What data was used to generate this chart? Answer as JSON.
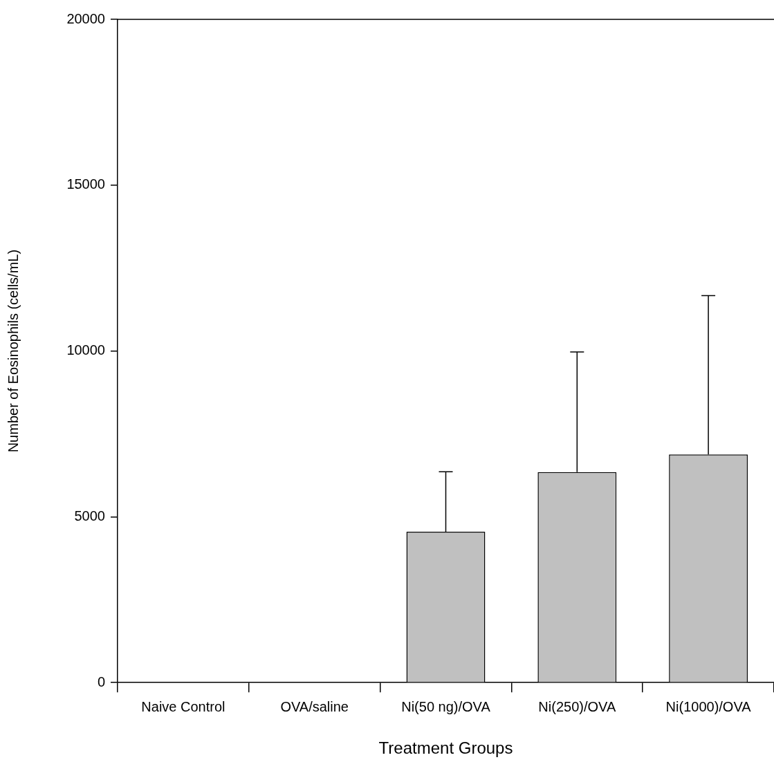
{
  "chart_data": {
    "type": "bar",
    "xlabel": "Treatment Groups",
    "ylabel": "Number of Eosinophils (cells/mL)",
    "categories": [
      "Naive Control",
      "OVA/saline",
      "Ni(50 ng)/OVA",
      "Ni(250)/OVA",
      "Ni(1000)/OVA"
    ],
    "values": [
      0,
      0,
      4550,
      6350,
      6880
    ],
    "errors": [
      null,
      null,
      [
        4550,
        6360
      ],
      [
        6350,
        9970
      ],
      [
        6880,
        11670
      ]
    ],
    "color": "#c0c0c0",
    "ylim": [
      0,
      20000
    ],
    "yticks": [
      0,
      5000,
      10000,
      15000,
      20000
    ],
    "grid": false,
    "legend": false
  }
}
